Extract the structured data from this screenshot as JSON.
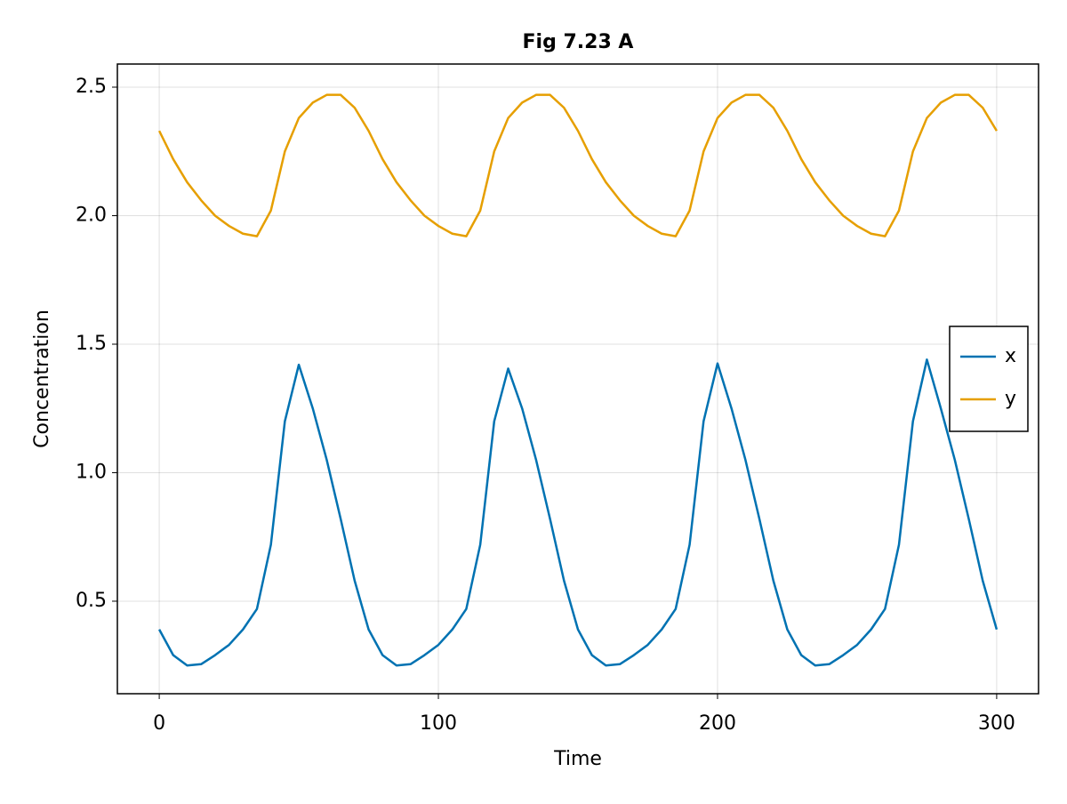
{
  "chart_data": {
    "type": "line",
    "title": "Fig 7.23 A",
    "x_label": "Time",
    "y_label": "Concentration",
    "x": [
      0,
      5,
      10,
      15,
      20,
      25,
      30,
      35,
      40,
      45,
      50,
      55,
      60,
      65,
      70,
      75,
      80,
      85,
      90,
      95,
      100,
      105,
      110,
      115,
      120,
      125,
      130,
      135,
      140,
      145,
      150,
      155,
      160,
      165,
      170,
      175,
      180,
      185,
      190,
      195,
      200,
      205,
      210,
      215,
      220,
      225,
      230,
      235,
      240,
      245,
      250,
      255,
      260,
      265,
      270,
      275,
      280,
      285,
      290,
      295,
      300
    ],
    "series": [
      {
        "name": "x",
        "color": "#0072b2",
        "values": [
          0.39,
          0.29,
          0.25,
          0.255,
          0.29,
          0.33,
          0.39,
          0.47,
          0.72,
          1.2,
          1.42,
          1.25,
          1.05,
          0.82,
          0.58,
          0.39,
          0.29,
          0.25,
          0.255,
          0.29,
          0.33,
          0.39,
          0.47,
          0.72,
          1.2,
          1.405,
          1.25,
          1.05,
          0.82,
          0.58,
          0.39,
          0.29,
          0.25,
          0.255,
          0.29,
          0.33,
          0.39,
          0.47,
          0.72,
          1.2,
          1.425,
          1.25,
          1.05,
          0.82,
          0.58,
          0.39,
          0.29,
          0.25,
          0.255,
          0.29,
          0.33,
          0.39,
          0.47,
          0.72,
          1.2,
          1.44,
          1.25,
          1.05,
          0.82,
          0.58,
          0.39
        ]
      },
      {
        "name": "y",
        "color": "#e69f00",
        "values": [
          2.33,
          2.22,
          2.13,
          2.06,
          2.0,
          1.96,
          1.93,
          1.92,
          2.02,
          2.25,
          2.38,
          2.44,
          2.47,
          2.47,
          2.42,
          2.33,
          2.22,
          2.13,
          2.06,
          2.0,
          1.96,
          1.93,
          1.92,
          2.02,
          2.25,
          2.38,
          2.44,
          2.47,
          2.47,
          2.42,
          2.33,
          2.22,
          2.13,
          2.06,
          2.0,
          1.96,
          1.93,
          1.92,
          2.02,
          2.25,
          2.38,
          2.44,
          2.47,
          2.47,
          2.42,
          2.33,
          2.22,
          2.13,
          2.06,
          2.0,
          1.96,
          1.93,
          1.92,
          2.02,
          2.25,
          2.38,
          2.44,
          2.47,
          2.47,
          2.42,
          2.33
        ]
      }
    ],
    "xlim": [
      -15,
      315
    ],
    "ylim": [
      0.14,
      2.59
    ],
    "xticks": [
      0,
      100,
      200,
      300
    ],
    "yticks": [
      0.5,
      {
        "value": 1,
        "label": "1.0"
      },
      1.5,
      {
        "value": 2,
        "label": "2.0"
      },
      2.5
    ],
    "grid": true,
    "legend_position": "right"
  }
}
